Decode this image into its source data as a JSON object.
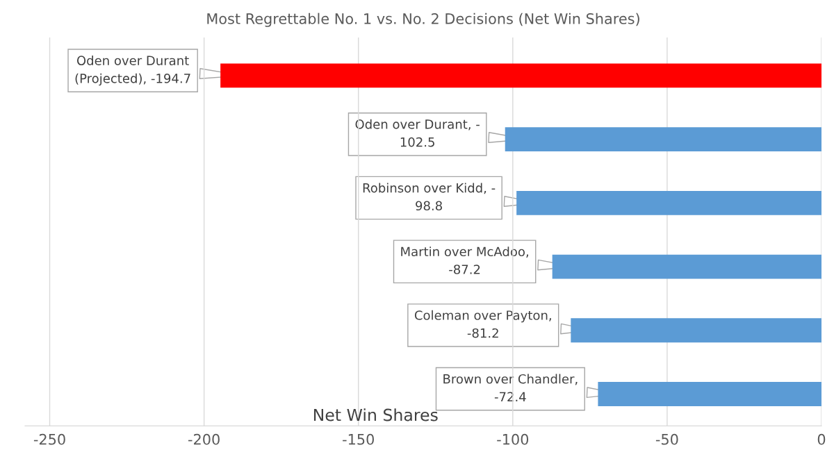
{
  "chart_data": {
    "type": "bar",
    "orientation": "horizontal",
    "title": "Most Regrettable No. 1 vs. No. 2 Decisions (Net Win Shares)",
    "xlabel": "Net Win Shares",
    "categories": [
      null,
      null,
      null,
      null,
      null,
      null
    ],
    "values": [
      -194.7,
      -102.5,
      -98.8,
      -87.2,
      -81.2,
      -72.4
    ],
    "colors": [
      "#ff0000",
      "#5b9bd5",
      "#5b9bd5",
      "#5b9bd5",
      "#5b9bd5",
      "#5b9bd5"
    ],
    "value_labels": [
      "Oden over Durant\n(Projected), -194.7",
      "Oden over Durant, -\n102.5",
      "Robinson over Kidd, -\n98.8",
      "Martin over McAdoo,\n-87.2",
      "Coleman over Payton,\n-81.2",
      "Brown over Chandler,\n-72.4"
    ],
    "xlim": [
      -258,
      0
    ],
    "xticks": [
      -250,
      -200,
      -150,
      -100,
      -50,
      0
    ],
    "grid": "x"
  }
}
